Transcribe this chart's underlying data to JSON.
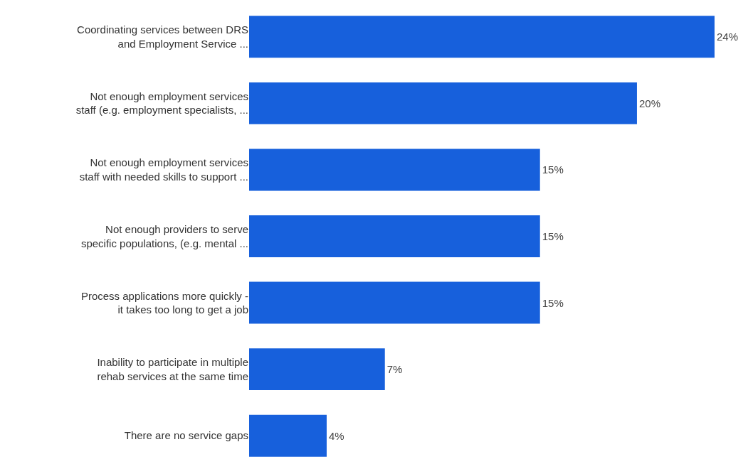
{
  "chart_data": {
    "type": "bar",
    "orientation": "horizontal",
    "categories": [
      "Coordinating services between DRS\nand Employment Service ...",
      "Not enough employment services\nstaff (e.g. employment specialists, ...",
      "Not enough employment services\nstaff with needed skills to support ...",
      "Not enough providers to serve\nspecific populations, (e.g. mental ...",
      "Process applications more quickly -\nit takes too long to get a job",
      "Inability to participate in multiple\nrehab services at the same time",
      "There are no service gaps"
    ],
    "values": [
      24,
      20,
      15,
      15,
      15,
      7,
      4
    ],
    "value_labels": [
      "24%",
      "20%",
      "15%",
      "15%",
      "15%",
      "7%",
      "4%"
    ],
    "color": "#1760dc",
    "grid": false
  }
}
